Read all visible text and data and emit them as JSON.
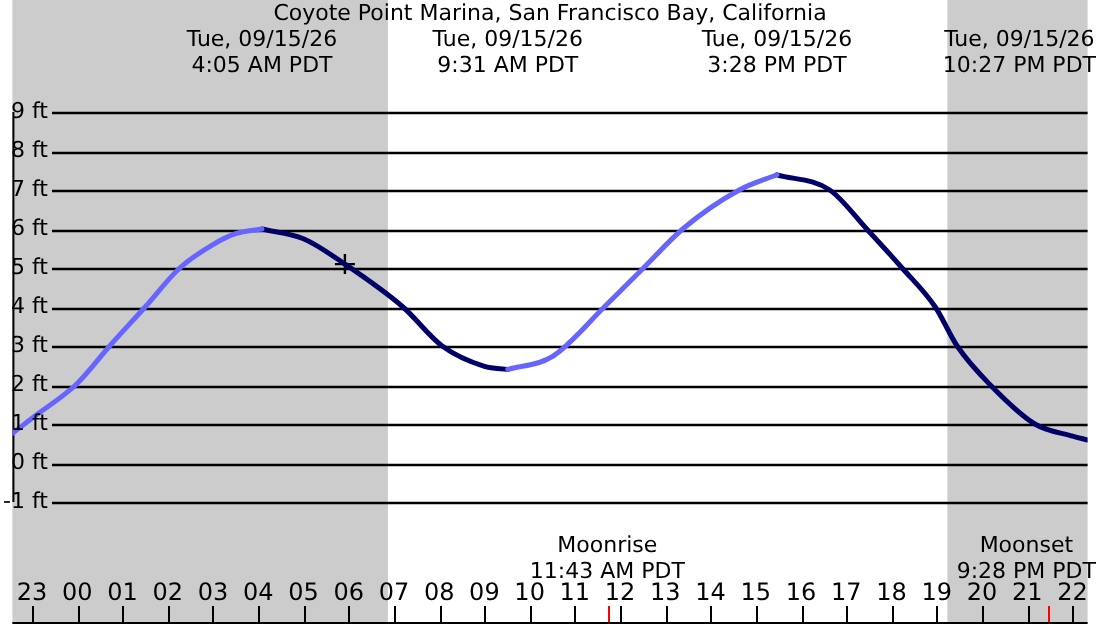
{
  "chart_data": {
    "type": "line",
    "title": "Coyote Point Marina, San Francisco Bay, California",
    "xlim": [
      "--09-14T22:34",
      "--09-15T22:20"
    ],
    "xticks": [
      {
        "value": "--09-14T23:00",
        "label": "23"
      },
      {
        "value": "--09-15T00:00",
        "label": "00"
      },
      {
        "value": "--09-15T01:00",
        "label": "01"
      },
      {
        "value": "--09-15T02:00",
        "label": "02"
      },
      {
        "value": "--09-15T03:00",
        "label": "03"
      },
      {
        "value": "--09-15T04:00",
        "label": "04"
      },
      {
        "value": "--09-15T05:00",
        "label": "05"
      },
      {
        "value": "--09-15T06:00",
        "label": "06"
      },
      {
        "value": "--09-15T07:00",
        "label": "07"
      },
      {
        "value": "--09-15T08:00",
        "label": "08"
      },
      {
        "value": "--09-15T09:00",
        "label": "09"
      },
      {
        "value": "--09-15T10:00",
        "label": "10"
      },
      {
        "value": "--09-15T11:00",
        "label": "11"
      },
      {
        "value": "--09-15T12:00",
        "label": "12"
      },
      {
        "value": "--09-15T13:00",
        "label": "13"
      },
      {
        "value": "--09-15T14:00",
        "label": "14"
      },
      {
        "value": "--09-15T15:00",
        "label": "15"
      },
      {
        "value": "--09-15T16:00",
        "label": "16"
      },
      {
        "value": "--09-15T17:00",
        "label": "17"
      },
      {
        "value": "--09-15T18:00",
        "label": "18"
      },
      {
        "value": "--09-15T19:00",
        "label": "19"
      },
      {
        "value": "--09-15T20:00",
        "label": "20"
      },
      {
        "value": "--09-15T21:00",
        "label": "21"
      },
      {
        "value": "--09-15T22:00",
        "label": "22"
      }
    ],
    "ylim": [
      -1,
      9
    ],
    "yticks": [
      {
        "value": -1,
        "label": "-1 ft"
      },
      {
        "value": 0,
        "label": "0 ft"
      },
      {
        "value": 1,
        "label": "1 ft"
      },
      {
        "value": 2,
        "label": "2 ft"
      },
      {
        "value": 3,
        "label": "3 ft"
      },
      {
        "value": 4,
        "label": "4 ft"
      },
      {
        "value": 5,
        "label": "5 ft"
      },
      {
        "value": 6,
        "label": "6 ft"
      },
      {
        "value": 7,
        "label": "7 ft"
      },
      {
        "value": 8,
        "label": "8 ft"
      },
      {
        "value": 9,
        "label": "9 ft"
      }
    ],
    "grid": "y",
    "legend": false,
    "marker": "none",
    "line_style": "solid",
    "series": [
      {
        "color": "#6666ff",
        "x": [
          "--09-14T22:34",
          "--09-14T23:00",
          "--09-15T00:00",
          "--09-15T00:43",
          "--09-15T01:30",
          "--09-15T02:16",
          "--09-15T03:00",
          "--09-15T03:30",
          "--09-15T04:05",
          "--09-15T06:00",
          "--09-15T09:31",
          "--09-15T10:30",
          "--09-15T11:39",
          "--09-15T12:31",
          "--09-15T13:23",
          "--09-15T14:38",
          "--09-15T15:28"
        ],
        "values": [
          0.76,
          1.15,
          2.04,
          3,
          4,
          5,
          5.6,
          5.88,
          6.0,
          null,
          2.4,
          2.73,
          4,
          5,
          6,
          7,
          7.39
        ]
      },
      {
        "color": "#000066",
        "x": [
          "--09-15T04:05",
          "--09-15T05:00",
          "--09-15T05:55",
          "--09-15T07:12",
          "--09-15T08:04",
          "--09-15T09:00",
          "--09-15T09:31",
          "--09-15T12:00",
          "--09-15T15:28",
          "--09-15T16:38",
          "--09-15T17:27",
          "--09-15T18:14",
          "--09-15T18:58",
          "--09-15T19:27",
          "--09-15T20:11",
          "--09-15T21:10",
          "--09-15T22:00",
          "--09-15T22:20"
        ],
        "values": [
          6.0,
          5.75,
          5.1,
          4,
          3,
          2.48,
          2.4,
          null,
          7.39,
          7,
          6,
          5,
          4,
          3,
          2,
          1,
          0.69,
          0.59
        ]
      },
      {
        "type": "scatter",
        "marker": "cross",
        "color": "#000000",
        "x": [
          "--09-15T05:55"
        ],
        "values": [
          5.1
        ]
      }
    ],
    "bands": [
      {
        "axis": "x",
        "from": "--09-14T22:34",
        "to": "--09-15T06:52",
        "color": "#cccccc"
      },
      {
        "axis": "x",
        "from": "--09-15T19:14",
        "to": "--09-15T22:20",
        "color": "#cccccc"
      }
    ],
    "ref_lines": [
      {
        "axis": "x",
        "value": "--09-15T11:43",
        "label": "Moonrise\n11:43 AM PDT",
        "color": "#ff0000"
      },
      {
        "axis": "x",
        "value": "--09-15T21:28",
        "label": "Moonset\n9:28 PM PDT",
        "color": "#ff0000"
      }
    ],
    "annotations": [
      "Tue, 09/15/26\n4:05 AM PDT",
      "Tue, 09/15/26\n9:31 AM PDT",
      "Tue, 09/15/26\n3:28 PM PDT",
      "Tue, 09/15/26\n10:27 PM PDT"
    ]
  }
}
